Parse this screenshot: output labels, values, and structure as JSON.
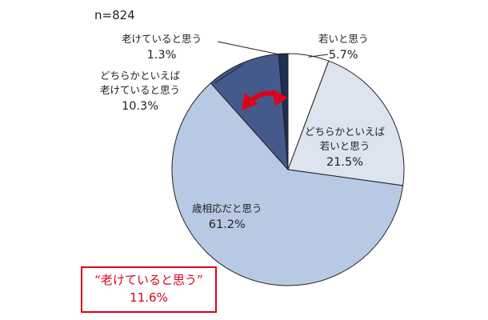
{
  "sample_label": "n=824",
  "slice_labels": [
    {
      "name": "若いと思う",
      "pct": "5.7%"
    },
    {
      "name": "どちらかといえば\n若いと思う",
      "pct": "21.5%"
    },
    {
      "name": "歳相応だと思う",
      "pct": "61.2%"
    },
    {
      "name": "どちらかといえば\n老けていると思う",
      "pct": "10.3%"
    },
    {
      "name": "老けていると思う",
      "pct": "1.3%"
    }
  ],
  "callout": {
    "title": "“老けていると思う”",
    "value": "11.6%"
  },
  "colors": {
    "slice_0": "#ffffff",
    "slice_1": "#dde3ef",
    "slice_2": "#b8c9e3",
    "slice_3": "#445a8a",
    "slice_4": "#1f2f52",
    "outline": "#222222",
    "arrow": "#e0001a"
  },
  "chart_data": {
    "type": "pie",
    "title": "",
    "categories": [
      "若いと思う",
      "どちらかといえば若いと思う",
      "歳相応だと思う",
      "どちらかといえば老けていると思う",
      "老けていると思う"
    ],
    "values": [
      5.7,
      21.5,
      61.2,
      10.3,
      1.3
    ],
    "units": "%",
    "start": "12 o'clock, clockwise"
  }
}
